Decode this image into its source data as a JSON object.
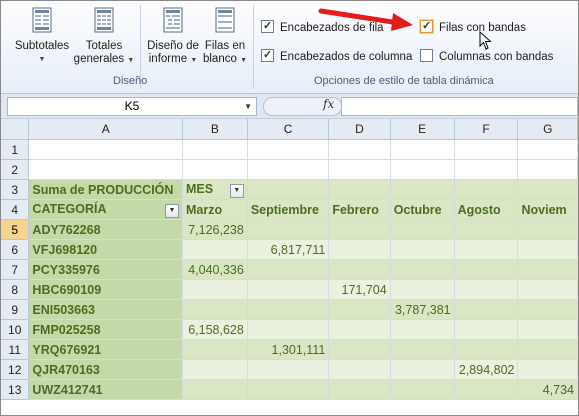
{
  "ribbon": {
    "buttons": [
      {
        "label1": "Subtotales",
        "label2": ""
      },
      {
        "label1": "Totales",
        "label2": "generales"
      },
      {
        "label1": "Diseño de",
        "label2": "informe"
      },
      {
        "label1": "Filas en",
        "label2": "blanco"
      }
    ],
    "group_diseno": "Diseño",
    "options": {
      "encabezados_fila": "Encabezados de fila",
      "encabezados_columna": "Encabezados de columna",
      "filas_bandas": "Filas con bandas",
      "columnas_bandas": "Columnas con bandas"
    },
    "group_opciones": "Opciones de estilo de tabla dinámica"
  },
  "formula_bar": {
    "name_box": "K5",
    "fx": "fx",
    "formula": ""
  },
  "grid": {
    "columns": [
      "A",
      "B",
      "C",
      "D",
      "E",
      "F",
      "G"
    ],
    "rows": [
      "1",
      "2",
      "3",
      "4",
      "5",
      "6",
      "7",
      "8",
      "9",
      "10",
      "11",
      "12",
      "13"
    ],
    "pivot_title": "Suma de PRODUCCIÓN",
    "mes_label": "MES",
    "categoria_label": "CATEGORÍA",
    "months": [
      "Marzo",
      "Septiembre",
      "Febrero",
      "Octubre",
      "Agosto",
      "Noviem"
    ],
    "records": [
      {
        "cat": "ADY762268",
        "vals": [
          "7,126,238",
          "",
          "",
          "",
          "",
          ""
        ]
      },
      {
        "cat": "VFJ698120",
        "vals": [
          "",
          "6,817,711",
          "",
          "",
          "",
          ""
        ]
      },
      {
        "cat": "PCY335976",
        "vals": [
          "4,040,336",
          "",
          "",
          "",
          "",
          ""
        ]
      },
      {
        "cat": "HBC690109",
        "vals": [
          "",
          "",
          "171,704",
          "",
          "",
          ""
        ]
      },
      {
        "cat": "ENI503663",
        "vals": [
          "",
          "",
          "",
          "3,787,381",
          "",
          ""
        ]
      },
      {
        "cat": "FMP025258",
        "vals": [
          "6,158,628",
          "",
          "",
          "",
          "",
          ""
        ]
      },
      {
        "cat": "YRQ676921",
        "vals": [
          "",
          "1,301,111",
          "",
          "",
          "",
          ""
        ]
      },
      {
        "cat": "QJR470163",
        "vals": [
          "",
          "",
          "",
          "",
          "2,894,802",
          ""
        ]
      },
      {
        "cat": "UWZ412741",
        "vals": [
          "",
          "",
          "",
          "",
          "",
          "4,734"
        ]
      }
    ]
  }
}
